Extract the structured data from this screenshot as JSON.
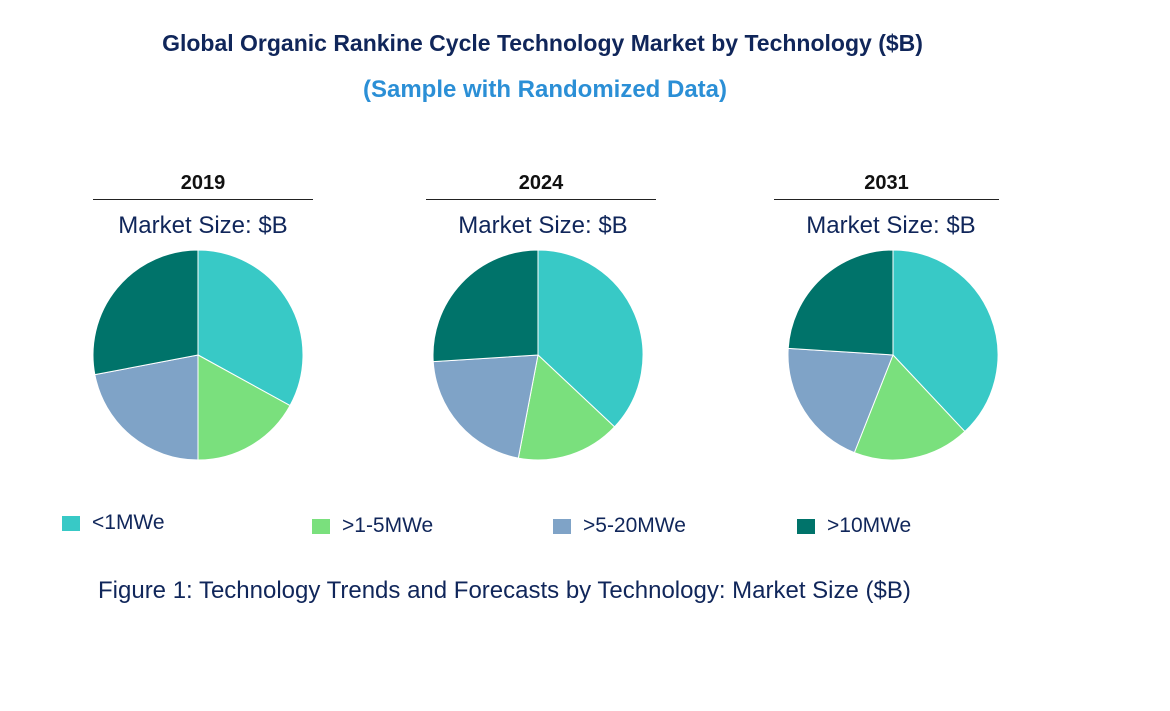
{
  "chart_data": {
    "type": "pie",
    "title": "Global Organic Rankine Cycle Technology Market by  Technology ($B)",
    "subtitle": "(Sample with Randomized Data)",
    "categories": [
      "<1MWe",
      ">1-5MWe",
      ">5-20MWe",
      ">10MWe"
    ],
    "colors": [
      "#38c9c6",
      "#7ae07d",
      "#7fa3c7",
      "#00736a"
    ],
    "legend_position": "bottom",
    "pies": [
      {
        "year": "2019",
        "label": "Market Size: $B",
        "values": [
          33,
          17,
          22,
          28
        ]
      },
      {
        "year": "2024",
        "label": "Market Size: $B",
        "values": [
          37,
          16,
          21,
          26
        ]
      },
      {
        "year": "2031",
        "label": "Market Size: $B",
        "values": [
          38,
          18,
          20,
          24
        ]
      }
    ],
    "caption": "Figure 1: Technology Trends and Forecasts by Technology: Market Size ($B)"
  }
}
